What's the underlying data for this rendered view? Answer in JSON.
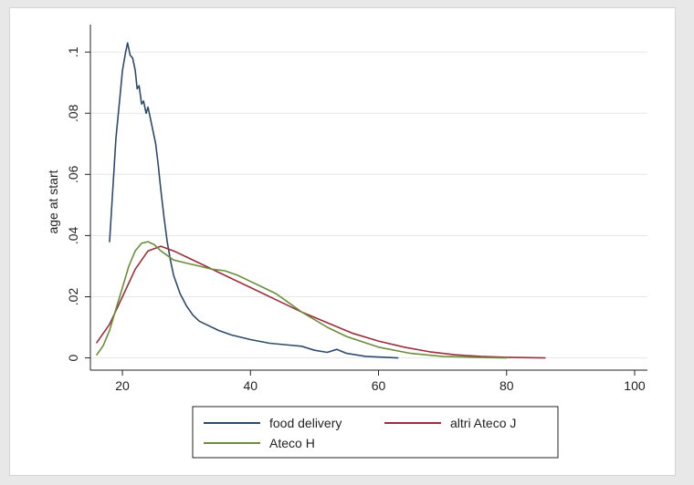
{
  "chart_data": {
    "type": "line",
    "title": "",
    "xlabel": "",
    "ylabel": "age at start",
    "xlim": [
      15,
      102
    ],
    "ylim": [
      -0.004,
      0.106
    ],
    "xticks": [
      20,
      40,
      60,
      80,
      100
    ],
    "xtick_labels": [
      "20",
      "40",
      "60",
      "80",
      "100"
    ],
    "yticks": [
      0,
      0.02,
      0.04,
      0.06,
      0.08,
      0.1
    ],
    "ytick_labels": [
      "0",
      ".02",
      ".04",
      ".06",
      ".08",
      ".1"
    ],
    "grid": true,
    "legend_position": "bottom",
    "series": [
      {
        "name": "food delivery",
        "color": "#2e4a6b",
        "points": [
          [
            18.0,
            0.038
          ],
          [
            18.5,
            0.055
          ],
          [
            19.0,
            0.072
          ],
          [
            19.5,
            0.083
          ],
          [
            20.0,
            0.094
          ],
          [
            20.5,
            0.1
          ],
          [
            20.8,
            0.103
          ],
          [
            21.2,
            0.099
          ],
          [
            21.6,
            0.098
          ],
          [
            22.0,
            0.094
          ],
          [
            22.3,
            0.088
          ],
          [
            22.6,
            0.089
          ],
          [
            23.0,
            0.083
          ],
          [
            23.3,
            0.084
          ],
          [
            23.7,
            0.08
          ],
          [
            24.0,
            0.082
          ],
          [
            24.4,
            0.078
          ],
          [
            24.8,
            0.074
          ],
          [
            25.2,
            0.07
          ],
          [
            25.6,
            0.063
          ],
          [
            26.0,
            0.055
          ],
          [
            26.5,
            0.046
          ],
          [
            27.0,
            0.038
          ],
          [
            27.5,
            0.032
          ],
          [
            28.0,
            0.027
          ],
          [
            28.5,
            0.024
          ],
          [
            29.0,
            0.021
          ],
          [
            29.5,
            0.019
          ],
          [
            30.0,
            0.017
          ],
          [
            31.0,
            0.014
          ],
          [
            32.0,
            0.012
          ],
          [
            33.0,
            0.011
          ],
          [
            35.0,
            0.009
          ],
          [
            37.0,
            0.0075
          ],
          [
            40.0,
            0.006
          ],
          [
            43.0,
            0.0048
          ],
          [
            46.0,
            0.0042
          ],
          [
            48.0,
            0.0038
          ],
          [
            50.0,
            0.0025
          ],
          [
            52.0,
            0.0018
          ],
          [
            53.5,
            0.0028
          ],
          [
            55.0,
            0.0015
          ],
          [
            58.0,
            0.0005
          ],
          [
            63.0,
            0.0
          ]
        ]
      },
      {
        "name": "altri Ateco J",
        "color": "#9b2d3c",
        "points": [
          [
            16.0,
            0.005
          ],
          [
            18.0,
            0.011
          ],
          [
            20.0,
            0.02
          ],
          [
            22.0,
            0.029
          ],
          [
            24.0,
            0.035
          ],
          [
            26.0,
            0.0365
          ],
          [
            28.0,
            0.035
          ],
          [
            30.0,
            0.033
          ],
          [
            33.0,
            0.03
          ],
          [
            36.0,
            0.027
          ],
          [
            40.0,
            0.023
          ],
          [
            44.0,
            0.019
          ],
          [
            48.0,
            0.015
          ],
          [
            52.0,
            0.0115
          ],
          [
            56.0,
            0.008
          ],
          [
            60.0,
            0.0055
          ],
          [
            64.0,
            0.0035
          ],
          [
            68.0,
            0.002
          ],
          [
            72.0,
            0.001
          ],
          [
            76.0,
            0.0005
          ],
          [
            80.0,
            0.0002
          ],
          [
            86.0,
            0.0
          ]
        ]
      },
      {
        "name": "Ateco H",
        "color": "#6b8e3a",
        "points": [
          [
            16.0,
            0.001
          ],
          [
            17.0,
            0.004
          ],
          [
            18.0,
            0.009
          ],
          [
            19.0,
            0.016
          ],
          [
            20.0,
            0.023
          ],
          [
            21.0,
            0.03
          ],
          [
            22.0,
            0.035
          ],
          [
            23.0,
            0.0375
          ],
          [
            24.0,
            0.038
          ],
          [
            25.0,
            0.037
          ],
          [
            26.0,
            0.035
          ],
          [
            27.0,
            0.0335
          ],
          [
            28.0,
            0.032
          ],
          [
            30.0,
            0.031
          ],
          [
            32.0,
            0.03
          ],
          [
            34.0,
            0.029
          ],
          [
            36.0,
            0.0285
          ],
          [
            38.0,
            0.027
          ],
          [
            40.0,
            0.025
          ],
          [
            42.0,
            0.023
          ],
          [
            44.0,
            0.021
          ],
          [
            46.0,
            0.018
          ],
          [
            48.0,
            0.015
          ],
          [
            50.0,
            0.0125
          ],
          [
            52.0,
            0.01
          ],
          [
            55.0,
            0.007
          ],
          [
            60.0,
            0.0035
          ],
          [
            65.0,
            0.0015
          ],
          [
            70.0,
            0.0005
          ],
          [
            75.0,
            0.0002
          ],
          [
            80.0,
            0.0
          ]
        ]
      }
    ]
  }
}
